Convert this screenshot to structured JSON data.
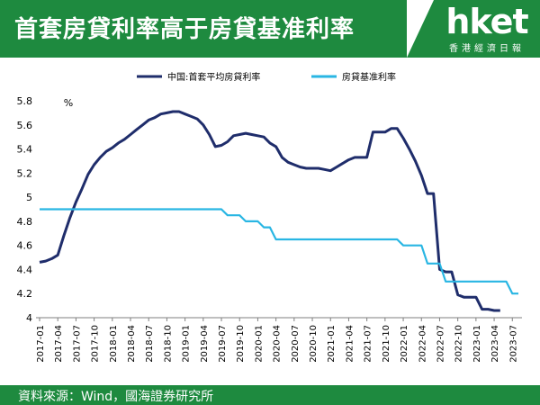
{
  "header": {
    "title": "首套房貸利率高于房貸基准利率",
    "logo_main": "hket",
    "logo_sub": "香港經濟日報",
    "brand_color": "#1e8a3f"
  },
  "footer": {
    "source": "資料來源：Wind，國海證券研究所"
  },
  "chart_data": {
    "type": "line",
    "ylabel": "%",
    "ylim": [
      4,
      5.8
    ],
    "yticks": [
      "4",
      "4.2",
      "4.4",
      "4.6",
      "4.8",
      "5",
      "5.2",
      "5.4",
      "5.6",
      "5.8"
    ],
    "grid": false,
    "legend_position": "top",
    "x": [
      "2017-01",
      "2017-02",
      "2017-03",
      "2017-04",
      "2017-05",
      "2017-06",
      "2017-07",
      "2017-08",
      "2017-09",
      "2017-10",
      "2017-11",
      "2017-12",
      "2018-01",
      "2018-02",
      "2018-03",
      "2018-04",
      "2018-05",
      "2018-06",
      "2018-07",
      "2018-08",
      "2018-09",
      "2018-10",
      "2018-11",
      "2018-12",
      "2019-01",
      "2019-02",
      "2019-03",
      "2019-04",
      "2019-05",
      "2019-06",
      "2019-07",
      "2019-08",
      "2019-09",
      "2019-10",
      "2019-11",
      "2019-12",
      "2020-01",
      "2020-02",
      "2020-03",
      "2020-04",
      "2020-05",
      "2020-06",
      "2020-07",
      "2020-08",
      "2020-09",
      "2020-10",
      "2020-11",
      "2020-12",
      "2021-01",
      "2021-02",
      "2021-03",
      "2021-04",
      "2021-05",
      "2021-06",
      "2021-07",
      "2021-08",
      "2021-09",
      "2021-10",
      "2021-11",
      "2021-12",
      "2022-01",
      "2022-02",
      "2022-03",
      "2022-04",
      "2022-05",
      "2022-06",
      "2022-07",
      "2022-08",
      "2022-09",
      "2022-10",
      "2022-11",
      "2022-12",
      "2023-01",
      "2023-02",
      "2023-03",
      "2023-04",
      "2023-05",
      "2023-06",
      "2023-07",
      "2023-08"
    ],
    "xtick_labels": [
      "2017-01",
      "2017-04",
      "2017-07",
      "2017-10",
      "2018-01",
      "2018-04",
      "2018-07",
      "2018-10",
      "2019-01",
      "2019-04",
      "2019-07",
      "2019-10",
      "2020-01",
      "2020-04",
      "2020-07",
      "2020-10",
      "2021-01",
      "2021-04",
      "2021-07",
      "2021-10",
      "2022-01",
      "2022-04",
      "2022-07",
      "2022-10",
      "2023-01",
      "2023-04",
      "2023-07"
    ],
    "series": [
      {
        "name": "中国:首套平均房貸利率",
        "color": "#1f2d6b",
        "values": [
          4.46,
          4.47,
          4.49,
          4.52,
          4.68,
          4.83,
          4.96,
          5.07,
          5.19,
          5.27,
          5.33,
          5.38,
          5.41,
          5.45,
          5.48,
          5.52,
          5.56,
          5.6,
          5.64,
          5.66,
          5.69,
          5.7,
          5.71,
          5.71,
          5.69,
          5.67,
          5.65,
          5.6,
          5.52,
          5.42,
          5.43,
          5.46,
          5.51,
          5.52,
          5.53,
          5.52,
          5.51,
          5.5,
          5.45,
          5.42,
          5.33,
          5.29,
          5.27,
          5.25,
          5.24,
          5.24,
          5.24,
          5.23,
          5.22,
          5.25,
          5.28,
          5.31,
          5.33,
          5.33,
          5.33,
          5.54,
          5.54,
          5.54,
          5.57,
          5.57,
          5.49,
          5.4,
          5.3,
          5.18,
          5.03,
          5.03,
          4.4,
          4.38,
          4.38,
          4.19,
          4.17,
          4.17,
          4.17,
          4.07,
          4.07,
          4.06,
          4.06,
          null,
          null,
          null
        ]
      },
      {
        "name": "房貸基准利率",
        "color": "#29b6e3",
        "values": [
          4.9,
          4.9,
          4.9,
          4.9,
          4.9,
          4.9,
          4.9,
          4.9,
          4.9,
          4.9,
          4.9,
          4.9,
          4.9,
          4.9,
          4.9,
          4.9,
          4.9,
          4.9,
          4.9,
          4.9,
          4.9,
          4.9,
          4.9,
          4.9,
          4.9,
          4.9,
          4.9,
          4.9,
          4.9,
          4.9,
          4.9,
          4.85,
          4.85,
          4.85,
          4.8,
          4.8,
          4.8,
          4.75,
          4.75,
          4.65,
          4.65,
          4.65,
          4.65,
          4.65,
          4.65,
          4.65,
          4.65,
          4.65,
          4.65,
          4.65,
          4.65,
          4.65,
          4.65,
          4.65,
          4.65,
          4.65,
          4.65,
          4.65,
          4.65,
          4.65,
          4.6,
          4.6,
          4.6,
          4.6,
          4.45,
          4.45,
          4.45,
          4.3,
          4.3,
          4.3,
          4.3,
          4.3,
          4.3,
          4.3,
          4.3,
          4.3,
          4.3,
          4.3,
          4.2,
          4.2
        ]
      }
    ]
  }
}
